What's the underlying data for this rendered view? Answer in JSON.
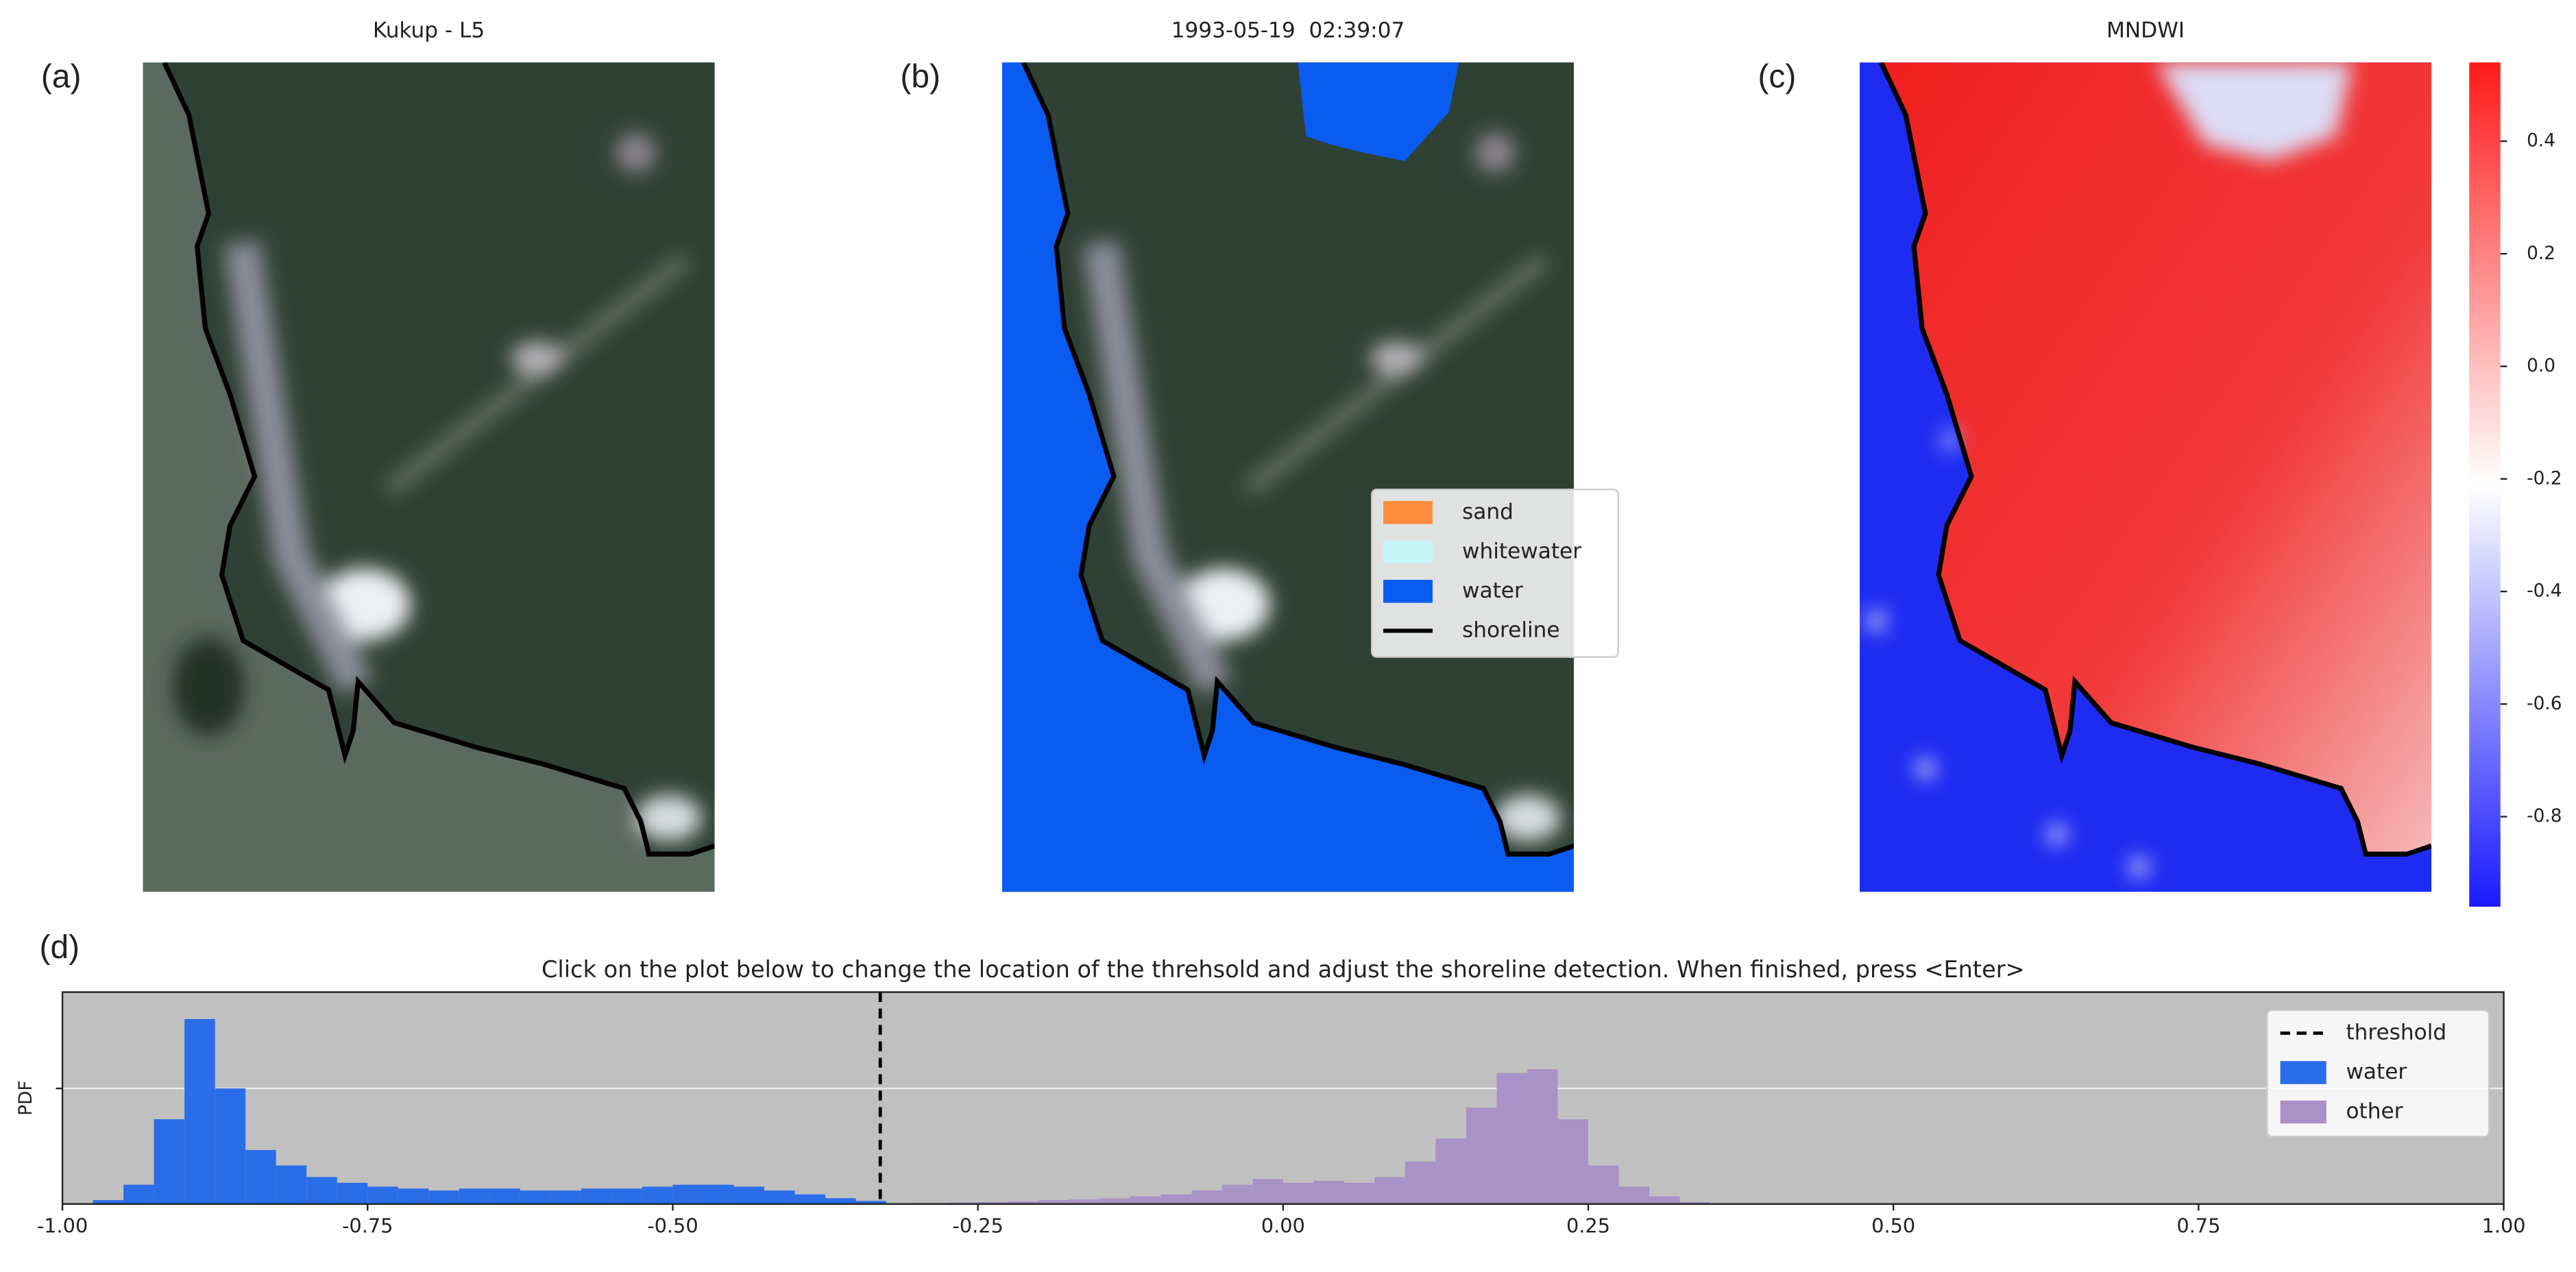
{
  "chart_data": [
    {
      "type": "image",
      "panel_label": "(a)",
      "title": "Kukup - L5"
    },
    {
      "type": "image",
      "panel_label": "(b)",
      "title": "1993-05-19  02:39:07",
      "legend": [
        {
          "name": "sand",
          "color": "#ff8c3a"
        },
        {
          "name": "whitewater",
          "color": "#c8f5f5"
        },
        {
          "name": "water",
          "color": "#0a5cf0"
        },
        {
          "name": "shoreline",
          "color": "#000000"
        }
      ]
    },
    {
      "type": "heatmap",
      "panel_label": "(c)",
      "title": "MNDWI",
      "colormap": [
        "#1a1aff",
        "#ffffff",
        "#ff1a1a"
      ],
      "clim": [
        -0.96,
        0.54
      ],
      "cticks": [
        0.4,
        0.2,
        {
          "value": 0,
          "label": "0.0"
        },
        -0.2,
        -0.4,
        -0.6,
        -0.8
      ]
    },
    {
      "type": "histogram",
      "panel_label": "(d)",
      "title": "Click on the plot below to change the location of the threhsold and adjust the shoreline detection. When finished, press <Enter>",
      "ylabel": "PDF",
      "xlim": [
        -1,
        1
      ],
      "xticks": [
        {
          "value": -1,
          "label": "-1.00"
        },
        -0.75,
        {
          "value": -0.5,
          "label": "-0.50"
        },
        -0.25,
        {
          "value": 0,
          "label": "0.00"
        },
        0.25,
        {
          "value": 0.5,
          "label": "0.50"
        },
        0.75,
        {
          "value": 1,
          "label": "1.00"
        }
      ],
      "ylim": [
        0,
        5.5
      ],
      "yticks": [
        3
      ],
      "grid": true,
      "background": "#c0c0c0",
      "legend_position": "upper right",
      "threshold": {
        "name": "threshold",
        "value": -0.33,
        "color": "#000000"
      },
      "series": [
        {
          "name": "water",
          "color": "#2b6de8",
          "bins": [
            -1.0,
            -0.975,
            -0.95,
            -0.925,
            -0.9,
            -0.875,
            -0.85,
            -0.825,
            -0.8,
            -0.775,
            -0.75,
            -0.725,
            -0.7,
            -0.675,
            -0.65,
            -0.625,
            -0.6,
            -0.575,
            -0.55,
            -0.525,
            -0.5,
            -0.475,
            -0.45,
            -0.425,
            -0.4,
            -0.375,
            -0.35,
            -0.325
          ],
          "values": [
            0.02,
            0.1,
            0.5,
            2.2,
            4.8,
            3.0,
            1.4,
            1.0,
            0.7,
            0.55,
            0.45,
            0.4,
            0.35,
            0.4,
            0.4,
            0.35,
            0.35,
            0.4,
            0.4,
            0.45,
            0.5,
            0.5,
            0.45,
            0.35,
            0.25,
            0.15,
            0.08
          ]
        },
        {
          "name": "other",
          "color": "#a992c6",
          "bins": [
            -0.35,
            -0.325,
            -0.3,
            -0.275,
            -0.25,
            -0.225,
            -0.2,
            -0.175,
            -0.15,
            -0.125,
            -0.1,
            -0.075,
            -0.05,
            -0.025,
            0.0,
            0.025,
            0.05,
            0.075,
            0.1,
            0.125,
            0.15,
            0.175,
            0.2,
            0.225,
            0.25,
            0.275,
            0.3,
            0.325,
            0.35
          ],
          "values": [
            0.02,
            0.02,
            0.03,
            0.04,
            0.05,
            0.07,
            0.1,
            0.12,
            0.15,
            0.2,
            0.25,
            0.35,
            0.5,
            0.65,
            0.55,
            0.6,
            0.55,
            0.7,
            1.1,
            1.7,
            2.5,
            3.4,
            3.5,
            2.2,
            1.0,
            0.45,
            0.2,
            0.05
          ]
        }
      ]
    }
  ]
}
